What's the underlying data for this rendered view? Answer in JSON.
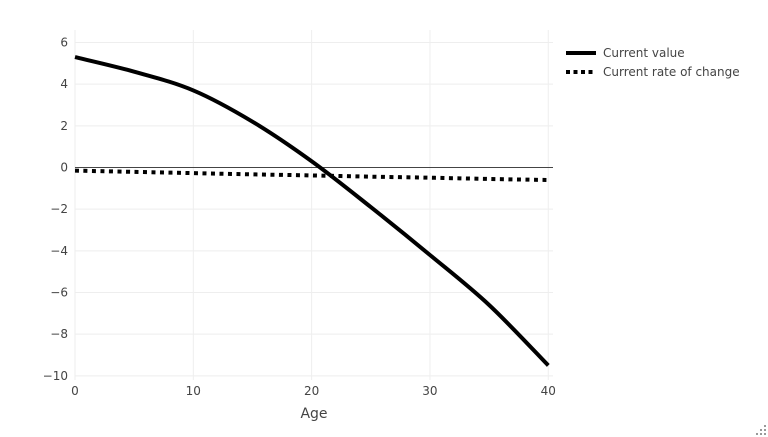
{
  "chart_data": {
    "type": "line",
    "title": "",
    "xlabel": "Age",
    "ylabel": "",
    "x": [
      0,
      5,
      10,
      15,
      20,
      25,
      30,
      35,
      40
    ],
    "series": [
      {
        "name": "Current value",
        "dash": "solid",
        "width": 4,
        "color": "#000000",
        "values": [
          5.3,
          4.6,
          3.7,
          2.2,
          0.3,
          -1.9,
          -4.2,
          -6.6,
          -9.5
        ]
      },
      {
        "name": "Current rate of change",
        "dash": "dot",
        "width": 4,
        "color": "#000000",
        "values": [
          -0.15,
          -0.21,
          -0.27,
          -0.33,
          -0.38,
          -0.44,
          -0.49,
          -0.55,
          -0.6
        ]
      }
    ],
    "xticks": [
      0,
      10,
      20,
      30,
      40
    ],
    "yticks": [
      6,
      4,
      2,
      0,
      -2,
      -4,
      -6,
      -8,
      -10
    ],
    "xlim": [
      0,
      40.4
    ],
    "ylim": [
      -10.2,
      6.6
    ],
    "grid": true,
    "grid_color": "#eeeeee",
    "zeroline_color": "#444444",
    "axis_text_color": "#444444",
    "legend_position": "top-right",
    "background_color": "#ffffff"
  }
}
